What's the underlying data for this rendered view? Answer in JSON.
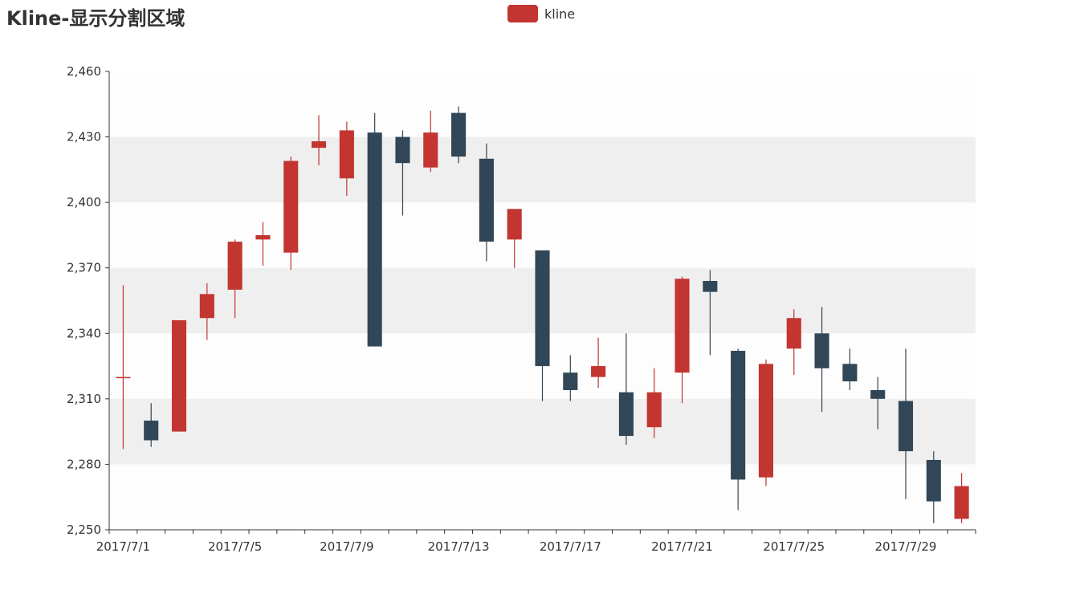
{
  "title": "Kline-显示分割区域",
  "legend": {
    "label": "kline",
    "color": "#c23531"
  },
  "colors": {
    "up": "#c23531",
    "down": "#314656",
    "axis": "#333333",
    "band_light": "#fdfdfd",
    "band_dark": "#efefef"
  },
  "chart_data": {
    "type": "candlestick",
    "title": "Kline-显示分割区域",
    "series": [
      {
        "name": "kline"
      }
    ],
    "ylim": [
      2250,
      2460
    ],
    "yticks": [
      "2,250",
      "2,280",
      "2,310",
      "2,340",
      "2,370",
      "2,400",
      "2,430",
      "2,460"
    ],
    "ytick_values": [
      2250,
      2280,
      2310,
      2340,
      2370,
      2400,
      2430,
      2460
    ],
    "xtick_labels": [
      "2017/7/1",
      "2017/7/5",
      "2017/7/9",
      "2017/7/13",
      "2017/7/17",
      "2017/7/21",
      "2017/7/25",
      "2017/7/29"
    ],
    "xtick_indices": [
      0,
      4,
      8,
      12,
      16,
      20,
      24,
      28
    ],
    "split_area": true,
    "data": [
      {
        "date": "2017/7/1",
        "open": 2320,
        "close": 2320,
        "low": 2287,
        "high": 2362
      },
      {
        "date": "2017/7/2",
        "open": 2300,
        "close": 2291,
        "low": 2288,
        "high": 2308
      },
      {
        "date": "2017/7/3",
        "open": 2295,
        "close": 2346,
        "low": 2295,
        "high": 2346
      },
      {
        "date": "2017/7/4",
        "open": 2347,
        "close": 2358,
        "low": 2337,
        "high": 2363
      },
      {
        "date": "2017/7/5",
        "open": 2360,
        "close": 2382,
        "low": 2347,
        "high": 2383
      },
      {
        "date": "2017/7/6",
        "open": 2383,
        "close": 2385,
        "low": 2371,
        "high": 2391
      },
      {
        "date": "2017/7/7",
        "open": 2377,
        "close": 2419,
        "low": 2369,
        "high": 2421
      },
      {
        "date": "2017/7/8",
        "open": 2425,
        "close": 2428,
        "low": 2417,
        "high": 2440
      },
      {
        "date": "2017/7/9",
        "open": 2411,
        "close": 2433,
        "low": 2403,
        "high": 2437
      },
      {
        "date": "2017/7/10",
        "open": 2432,
        "close": 2334,
        "low": 2334,
        "high": 2441
      },
      {
        "date": "2017/7/11",
        "open": 2430,
        "close": 2418,
        "low": 2394,
        "high": 2433
      },
      {
        "date": "2017/7/12",
        "open": 2416,
        "close": 2432,
        "low": 2414,
        "high": 2442
      },
      {
        "date": "2017/7/13",
        "open": 2441,
        "close": 2421,
        "low": 2418,
        "high": 2444
      },
      {
        "date": "2017/7/14",
        "open": 2420,
        "close": 2382,
        "low": 2373,
        "high": 2427
      },
      {
        "date": "2017/7/15",
        "open": 2383,
        "close": 2397,
        "low": 2370,
        "high": 2397
      },
      {
        "date": "2017/7/16",
        "open": 2378,
        "close": 2325,
        "low": 2309,
        "high": 2378
      },
      {
        "date": "2017/7/17",
        "open": 2322,
        "close": 2314,
        "low": 2309,
        "high": 2330
      },
      {
        "date": "2017/7/18",
        "open": 2320,
        "close": 2325,
        "low": 2315,
        "high": 2338
      },
      {
        "date": "2017/7/19",
        "open": 2313,
        "close": 2293,
        "low": 2289,
        "high": 2340
      },
      {
        "date": "2017/7/20",
        "open": 2297,
        "close": 2313,
        "low": 2292,
        "high": 2324
      },
      {
        "date": "2017/7/21",
        "open": 2322,
        "close": 2365,
        "low": 2308,
        "high": 2366
      },
      {
        "date": "2017/7/22",
        "open": 2364,
        "close": 2359,
        "low": 2330,
        "high": 2369
      },
      {
        "date": "2017/7/23",
        "open": 2332,
        "close": 2273,
        "low": 2259,
        "high": 2333
      },
      {
        "date": "2017/7/24",
        "open": 2274,
        "close": 2326,
        "low": 2270,
        "high": 2328
      },
      {
        "date": "2017/7/25",
        "open": 2333,
        "close": 2347,
        "low": 2321,
        "high": 2351
      },
      {
        "date": "2017/7/26",
        "open": 2340,
        "close": 2324,
        "low": 2304,
        "high": 2352
      },
      {
        "date": "2017/7/27",
        "open": 2326,
        "close": 2318,
        "low": 2314,
        "high": 2333
      },
      {
        "date": "2017/7/28",
        "open": 2314,
        "close": 2310,
        "low": 2296,
        "high": 2320
      },
      {
        "date": "2017/7/29",
        "open": 2309,
        "close": 2286,
        "low": 2264,
        "high": 2333
      },
      {
        "date": "2017/7/30",
        "open": 2282,
        "close": 2263,
        "low": 2253,
        "high": 2286
      },
      {
        "date": "2017/7/31",
        "open": 2255,
        "close": 2270,
        "low": 2253,
        "high": 2276
      }
    ]
  }
}
